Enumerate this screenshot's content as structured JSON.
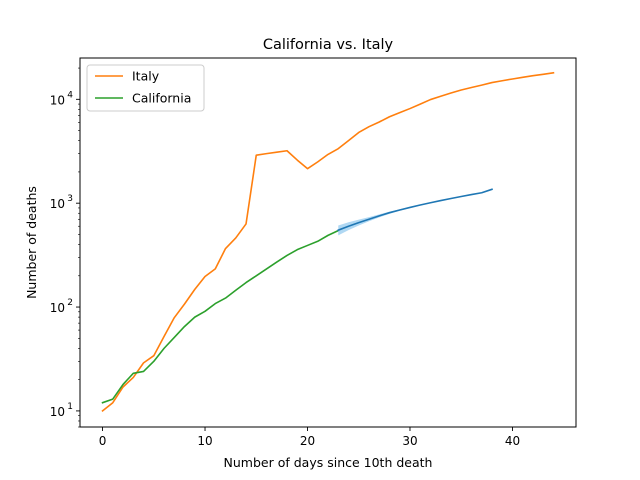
{
  "chart_data": {
    "type": "line",
    "title": "California vs. Italy",
    "xlabel": "Number of days since 10th death",
    "ylabel": "Number of deaths",
    "xlim": [
      -2.2,
      46.2
    ],
    "ylim": [
      7,
      25000
    ],
    "yscale": "log",
    "x_ticks": [
      0,
      10,
      20,
      30,
      40
    ],
    "y_ticks": [
      {
        "value": 10,
        "base": "10",
        "exp": "1"
      },
      {
        "value": 100,
        "base": "10",
        "exp": "2"
      },
      {
        "value": 1000,
        "base": "10",
        "exp": "3"
      },
      {
        "value": 10000,
        "base": "10",
        "exp": "4"
      }
    ],
    "legend_position": "top-left",
    "grid": false,
    "series": [
      {
        "name": "Italy",
        "color": "#ff7f0e",
        "in_legend": true,
        "points": [
          [
            0,
            10
          ],
          [
            1,
            12
          ],
          [
            2,
            17
          ],
          [
            3,
            21
          ],
          [
            4,
            29
          ],
          [
            5,
            34
          ],
          [
            6,
            52
          ],
          [
            7,
            79
          ],
          [
            8,
            107
          ],
          [
            9,
            148
          ],
          [
            10,
            197
          ],
          [
            11,
            233
          ],
          [
            12,
            366
          ],
          [
            13,
            463
          ],
          [
            14,
            631
          ],
          [
            15,
            2900
          ],
          [
            16,
            3000
          ],
          [
            17,
            3100
          ],
          [
            18,
            3200
          ],
          [
            19,
            2600
          ],
          [
            20,
            2150
          ],
          [
            21,
            2500
          ],
          [
            22,
            2950
          ],
          [
            23,
            3350
          ],
          [
            24,
            4000
          ],
          [
            25,
            4800
          ],
          [
            26,
            5450
          ],
          [
            27,
            6050
          ],
          [
            28,
            6800
          ],
          [
            29,
            7450
          ],
          [
            30,
            8150
          ],
          [
            31,
            9000
          ],
          [
            32,
            9950
          ],
          [
            33,
            10700
          ],
          [
            34,
            11500
          ],
          [
            35,
            12300
          ],
          [
            36,
            13000
          ],
          [
            37,
            13700
          ],
          [
            38,
            14500
          ],
          [
            39,
            15100
          ],
          [
            40,
            15700
          ],
          [
            41,
            16300
          ],
          [
            42,
            16900
          ],
          [
            43,
            17400
          ],
          [
            44,
            18000
          ]
        ]
      },
      {
        "name": "California",
        "color": "#2ca02c",
        "in_legend": true,
        "points": [
          [
            0,
            12
          ],
          [
            1,
            13
          ],
          [
            2,
            18
          ],
          [
            3,
            23
          ],
          [
            4,
            24
          ],
          [
            5,
            30
          ],
          [
            6,
            40
          ],
          [
            7,
            51
          ],
          [
            8,
            65
          ],
          [
            9,
            80
          ],
          [
            10,
            91
          ],
          [
            11,
            108
          ],
          [
            12,
            122
          ],
          [
            13,
            145
          ],
          [
            14,
            172
          ],
          [
            15,
            200
          ],
          [
            16,
            233
          ],
          [
            17,
            271
          ],
          [
            18,
            314
          ],
          [
            19,
            357
          ],
          [
            20,
            392
          ],
          [
            21,
            430
          ],
          [
            22,
            490
          ],
          [
            23,
            545
          ]
        ]
      },
      {
        "name": "",
        "color": "#1f77b4",
        "band_color": "#8fc7ee",
        "in_legend": false,
        "points": [
          [
            23,
            550
          ],
          [
            24,
            600
          ],
          [
            25,
            650
          ],
          [
            26,
            700
          ],
          [
            27,
            755
          ],
          [
            28,
            810
          ],
          [
            29,
            860
          ],
          [
            30,
            910
          ],
          [
            31,
            960
          ],
          [
            32,
            1010
          ],
          [
            33,
            1060
          ],
          [
            34,
            1110
          ],
          [
            35,
            1160
          ],
          [
            36,
            1210
          ],
          [
            37,
            1260
          ],
          [
            38,
            1360
          ]
        ],
        "band_lower": [
          [
            23,
            490
          ],
          [
            24,
            550
          ],
          [
            25,
            610
          ],
          [
            26,
            670
          ],
          [
            27,
            730
          ],
          [
            28,
            790
          ],
          [
            29,
            845
          ],
          [
            30,
            900
          ],
          [
            31,
            955
          ],
          [
            32,
            1005
          ],
          [
            33,
            1055
          ],
          [
            34,
            1105
          ],
          [
            35,
            1155
          ],
          [
            36,
            1205
          ],
          [
            37,
            1255
          ],
          [
            38,
            1355
          ]
        ],
        "band_upper": [
          [
            23,
            610
          ],
          [
            24,
            655
          ],
          [
            25,
            695
          ],
          [
            26,
            735
          ],
          [
            27,
            780
          ],
          [
            28,
            830
          ],
          [
            29,
            875
          ],
          [
            30,
            922
          ],
          [
            31,
            968
          ],
          [
            32,
            1016
          ],
          [
            33,
            1065
          ],
          [
            34,
            1115
          ],
          [
            35,
            1165
          ],
          [
            36,
            1215
          ],
          [
            37,
            1265
          ],
          [
            38,
            1365
          ]
        ]
      }
    ]
  }
}
